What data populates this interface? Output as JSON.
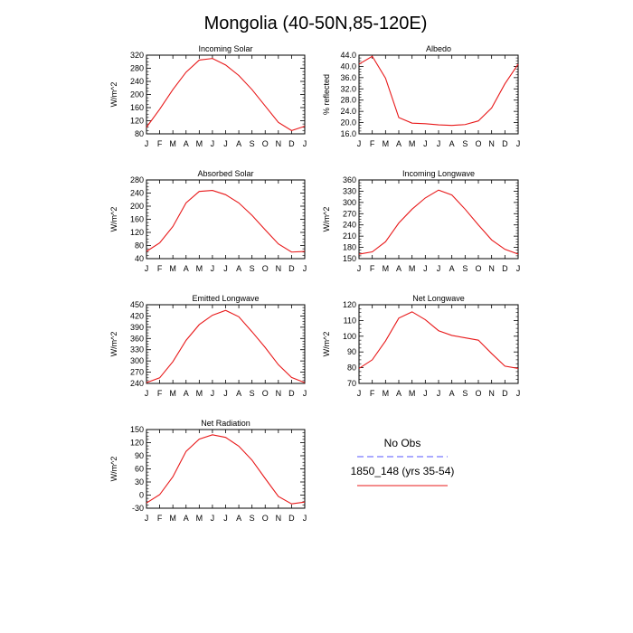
{
  "title": "Mongolia (40-50N,85-120E)",
  "colors": {
    "model": "#e8191a",
    "obs": "#7878ff",
    "axis": "#000000"
  },
  "legend": {
    "obs_label": "No Obs",
    "model_label": "1850_148 (yrs 35-54)"
  },
  "chart_data": [
    {
      "type": "line",
      "title": "Incoming Solar",
      "ylabel": "W/m^2",
      "categories": [
        "J",
        "F",
        "M",
        "A",
        "M",
        "J",
        "J",
        "A",
        "S",
        "O",
        "N",
        "D",
        "J"
      ],
      "ylim": [
        80,
        320
      ],
      "yticks": [
        80,
        120,
        160,
        200,
        240,
        280,
        320
      ],
      "ytick_labels": [
        "80",
        "120",
        "160",
        "200",
        "240",
        "280",
        "320"
      ],
      "series": [
        {
          "name": "1850_148 (yrs 35-54)",
          "values": [
            100,
            155,
            215,
            268,
            305,
            310,
            290,
            258,
            215,
            165,
            115,
            90,
            103
          ]
        }
      ]
    },
    {
      "type": "line",
      "title": "Albedo",
      "ylabel": "% reflected",
      "categories": [
        "J",
        "F",
        "M",
        "A",
        "M",
        "J",
        "J",
        "A",
        "S",
        "O",
        "N",
        "D",
        "J"
      ],
      "ylim": [
        16,
        44
      ],
      "yticks": [
        16,
        20,
        24,
        28,
        32,
        36,
        40,
        44
      ],
      "ytick_labels": [
        "16.0",
        "20.0",
        "24.0",
        "28.0",
        "32.0",
        "36.0",
        "40.0",
        "44.0"
      ],
      "series": [
        {
          "name": "1850_148 (yrs 35-54)",
          "values": [
            40.8,
            43.6,
            35.8,
            21.8,
            19.8,
            19.6,
            19.2,
            19.0,
            19.3,
            20.6,
            25.2,
            33.8,
            40.8
          ]
        }
      ]
    },
    {
      "type": "line",
      "title": "Absorbed Solar",
      "ylabel": "W/m^2",
      "categories": [
        "J",
        "F",
        "M",
        "A",
        "M",
        "J",
        "J",
        "A",
        "S",
        "O",
        "N",
        "D",
        "J"
      ],
      "ylim": [
        40,
        280
      ],
      "yticks": [
        40,
        80,
        120,
        160,
        200,
        240,
        280
      ],
      "ytick_labels": [
        "40",
        "80",
        "120",
        "160",
        "200",
        "240",
        "280"
      ],
      "series": [
        {
          "name": "1850_148 (yrs 35-54)",
          "values": [
            62,
            88,
            138,
            210,
            245,
            248,
            235,
            210,
            172,
            128,
            85,
            60,
            62
          ]
        }
      ]
    },
    {
      "type": "line",
      "title": "Incoming Longwave",
      "ylabel": "W/m^2",
      "categories": [
        "J",
        "F",
        "M",
        "A",
        "M",
        "J",
        "J",
        "A",
        "S",
        "O",
        "N",
        "D",
        "J"
      ],
      "ylim": [
        150,
        360
      ],
      "yticks": [
        150,
        180,
        210,
        240,
        270,
        300,
        330,
        360
      ],
      "ytick_labels": [
        "150",
        "180",
        "210",
        "240",
        "270",
        "300",
        "330",
        "360"
      ],
      "series": [
        {
          "name": "1850_148 (yrs 35-54)",
          "values": [
            162,
            168,
            195,
            245,
            282,
            312,
            333,
            320,
            282,
            240,
            200,
            175,
            162
          ]
        }
      ]
    },
    {
      "type": "line",
      "title": "Emitted Longwave",
      "ylabel": "W/m^2",
      "categories": [
        "J",
        "F",
        "M",
        "A",
        "M",
        "J",
        "J",
        "A",
        "S",
        "O",
        "N",
        "D",
        "J"
      ],
      "ylim": [
        240,
        450
      ],
      "yticks": [
        240,
        270,
        300,
        330,
        360,
        390,
        420,
        450
      ],
      "ytick_labels": [
        "240",
        "270",
        "300",
        "330",
        "360",
        "390",
        "420",
        "450"
      ],
      "series": [
        {
          "name": "1850_148 (yrs 35-54)",
          "values": [
            242,
            255,
            298,
            355,
            397,
            422,
            435,
            418,
            378,
            336,
            290,
            256,
            242
          ]
        }
      ]
    },
    {
      "type": "line",
      "title": "Net Longwave",
      "ylabel": "W/m^2",
      "categories": [
        "J",
        "F",
        "M",
        "A",
        "M",
        "J",
        "J",
        "A",
        "S",
        "O",
        "N",
        "D",
        "J"
      ],
      "ylim": [
        70,
        120
      ],
      "yticks": [
        70,
        80,
        90,
        100,
        110,
        120
      ],
      "ytick_labels": [
        "70",
        "80",
        "90",
        "100",
        "110",
        "120"
      ],
      "series": [
        {
          "name": "1850_148 (yrs 35-54)",
          "values": [
            79.5,
            85,
            97,
            111.5,
            115.5,
            110.5,
            103.5,
            100.5,
            99,
            97.5,
            89,
            81,
            79.5
          ]
        }
      ]
    },
    {
      "type": "line",
      "title": "Net Radiation",
      "ylabel": "W/m^2",
      "categories": [
        "J",
        "F",
        "M",
        "A",
        "M",
        "J",
        "J",
        "A",
        "S",
        "O",
        "N",
        "D",
        "J"
      ],
      "ylim": [
        -30,
        150
      ],
      "yticks": [
        -30,
        0,
        30,
        60,
        90,
        120,
        150
      ],
      "ytick_labels": [
        "-30",
        "0",
        "30",
        "60",
        "90",
        "120",
        "150"
      ],
      "series": [
        {
          "name": "1850_148 (yrs 35-54)",
          "values": [
            -18,
            1,
            42,
            100,
            128,
            138,
            132,
            112,
            80,
            38,
            -3,
            -20,
            -16
          ]
        }
      ]
    }
  ]
}
